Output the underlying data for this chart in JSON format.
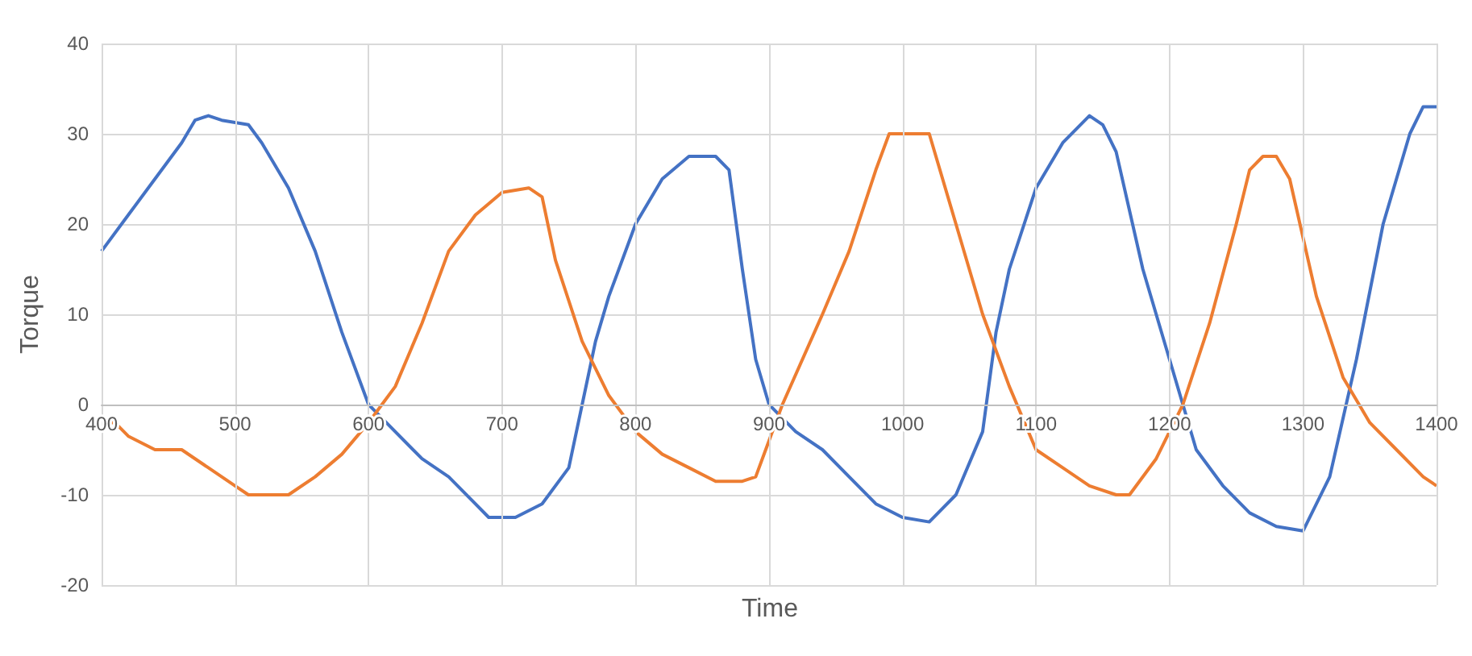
{
  "chart_data": {
    "type": "line",
    "xlabel": "Time",
    "ylabel": "Torque",
    "xlim": [
      400,
      1400
    ],
    "xticks": [
      400,
      500,
      600,
      700,
      800,
      900,
      1000,
      1100,
      1200,
      1300,
      1400
    ],
    "ylim": [
      -20,
      40
    ],
    "yticks": [
      -20,
      -10,
      0,
      10,
      20,
      30,
      40
    ],
    "grid": true,
    "marker": "none",
    "line_style": "solid",
    "series": [
      {
        "color": "#4472c4",
        "x": [
          400,
          420,
          440,
          460,
          470,
          480,
          490,
          510,
          520,
          540,
          560,
          580,
          600,
          620,
          640,
          660,
          680,
          690,
          710,
          730,
          750,
          760,
          770,
          780,
          800,
          820,
          840,
          860,
          870,
          880,
          890,
          900,
          920,
          940,
          960,
          980,
          1000,
          1020,
          1040,
          1060,
          1070,
          1080,
          1100,
          1120,
          1140,
          1150,
          1160,
          1180,
          1200,
          1220,
          1240,
          1260,
          1280,
          1300,
          1320,
          1340,
          1360,
          1380,
          1390,
          1400
        ],
        "values": [
          17,
          21,
          25,
          29,
          31.5,
          32,
          31.5,
          31,
          29,
          24,
          17,
          8,
          0,
          -3,
          -6,
          -8,
          -11,
          -12.5,
          -12.5,
          -11,
          -7,
          0,
          7,
          12,
          20,
          25,
          27.5,
          27.5,
          26,
          15,
          5,
          0,
          -3,
          -5,
          -8,
          -11,
          -12.5,
          -13,
          -10,
          -3,
          8,
          15,
          24,
          29,
          32,
          31,
          28,
          15,
          5,
          -5,
          -9,
          -12,
          -13.5,
          -14,
          -8,
          5,
          20,
          30,
          33,
          33
        ]
      },
      {
        "color": "#ed7d31",
        "x": [
          400,
          410,
          420,
          440,
          460,
          480,
          500,
          510,
          540,
          560,
          580,
          600,
          610,
          620,
          640,
          660,
          680,
          700,
          720,
          730,
          740,
          760,
          780,
          800,
          820,
          840,
          860,
          880,
          890,
          900,
          910,
          940,
          960,
          980,
          990,
          1020,
          1040,
          1060,
          1080,
          1100,
          1120,
          1140,
          1160,
          1170,
          1190,
          1210,
          1230,
          1250,
          1260,
          1270,
          1280,
          1290,
          1310,
          1330,
          1350,
          1370,
          1390,
          1400
        ],
        "values": [
          -2,
          -2,
          -3.5,
          -5,
          -5,
          -7,
          -9,
          -10,
          -10,
          -8,
          -5.5,
          -2,
          0,
          2,
          9,
          17,
          21,
          23.5,
          24,
          23,
          16,
          7,
          1,
          -3,
          -5.5,
          -7,
          -8.5,
          -8.5,
          -8,
          -4,
          0,
          10,
          17,
          26,
          30,
          30,
          20,
          10,
          2,
          -5,
          -7,
          -9,
          -10,
          -10,
          -6,
          0,
          9,
          20,
          26,
          27.5,
          27.5,
          25,
          12,
          3,
          -2,
          -5,
          -8,
          -9
        ]
      }
    ]
  }
}
